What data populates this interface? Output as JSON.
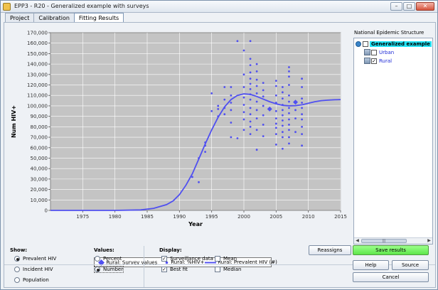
{
  "window": {
    "title": "EPP3 - R20 - Generalized example with surveys",
    "controls": {
      "minimize": "–",
      "maximize": "□",
      "close": "✕"
    }
  },
  "tabs": [
    {
      "label": "Project",
      "active": false
    },
    {
      "label": "Calibration",
      "active": false
    },
    {
      "label": "Fitting Results",
      "active": true
    }
  ],
  "chart_data": {
    "type": "scatter",
    "xlabel": "Year",
    "ylabel": "Num HIV+",
    "xlim": [
      1970,
      2015
    ],
    "ylim": [
      0,
      170000
    ],
    "x_ticks": [
      "1975",
      "1980",
      "1985",
      "1990",
      "1995",
      "2000",
      "2005",
      "2010",
      "2015"
    ],
    "y_ticks": [
      "0",
      "10,000",
      "20,000",
      "30,000",
      "40,000",
      "50,000",
      "60,000",
      "70,000",
      "80,000",
      "90,000",
      "100,000",
      "110,000",
      "120,000",
      "130,000",
      "140,000",
      "150,000",
      "160,000",
      "170,000"
    ],
    "grid": true,
    "legend_position": "bottom",
    "colors": {
      "series": "#5050f0",
      "plot_bg": "#c4c4c4",
      "grid": "#ffffff"
    },
    "series": [
      {
        "name": "Rural: Survey values",
        "marker": "diamond",
        "points": [
          [
            2004,
            97000
          ],
          [
            2008,
            103500
          ]
        ]
      },
      {
        "name": "Rural: %HIV+",
        "marker": "dot",
        "points": [
          [
            1992,
            32000
          ],
          [
            1993,
            27000
          ],
          [
            1993,
            50000
          ],
          [
            1994,
            56000
          ],
          [
            1994,
            62000
          ],
          [
            1994,
            65000
          ],
          [
            1995,
            95000
          ],
          [
            1995,
            112000
          ],
          [
            1996,
            90000
          ],
          [
            1996,
            97000
          ],
          [
            1996,
            100000
          ],
          [
            1997,
            92000
          ],
          [
            1997,
            98000
          ],
          [
            1997,
            106000
          ],
          [
            1997,
            118000
          ],
          [
            1998,
            70000
          ],
          [
            1998,
            84000
          ],
          [
            1998,
            96000
          ],
          [
            1998,
            103000
          ],
          [
            1998,
            110000
          ],
          [
            1998,
            118000
          ],
          [
            1999,
            69000
          ],
          [
            1999,
            162000
          ],
          [
            2000,
            77000
          ],
          [
            2000,
            87000
          ],
          [
            2000,
            94000
          ],
          [
            2000,
            101000
          ],
          [
            2000,
            108000
          ],
          [
            2000,
            118000
          ],
          [
            2000,
            130000
          ],
          [
            2000,
            153000
          ],
          [
            2001,
            73000
          ],
          [
            2001,
            80000
          ],
          [
            2001,
            85000
          ],
          [
            2001,
            92000
          ],
          [
            2001,
            98000
          ],
          [
            2001,
            106000
          ],
          [
            2001,
            111000
          ],
          [
            2001,
            116000
          ],
          [
            2001,
            121000
          ],
          [
            2001,
            126000
          ],
          [
            2001,
            132000
          ],
          [
            2001,
            139000
          ],
          [
            2001,
            145000
          ],
          [
            2001,
            162000
          ],
          [
            2002,
            58000
          ],
          [
            2002,
            77000
          ],
          [
            2002,
            88000
          ],
          [
            2002,
            96000
          ],
          [
            2002,
            104000
          ],
          [
            2002,
            112000
          ],
          [
            2002,
            119000
          ],
          [
            2002,
            125000
          ],
          [
            2002,
            133000
          ],
          [
            2002,
            140000
          ],
          [
            2003,
            71000
          ],
          [
            2003,
            82000
          ],
          [
            2003,
            91000
          ],
          [
            2003,
            100000
          ],
          [
            2003,
            109000
          ],
          [
            2003,
            115000
          ],
          [
            2003,
            122000
          ],
          [
            2005,
            63000
          ],
          [
            2005,
            73000
          ],
          [
            2005,
            79000
          ],
          [
            2005,
            83000
          ],
          [
            2005,
            88000
          ],
          [
            2005,
            95000
          ],
          [
            2005,
            103000
          ],
          [
            2005,
            110000
          ],
          [
            2005,
            119000
          ],
          [
            2005,
            124000
          ],
          [
            2006,
            59000
          ],
          [
            2006,
            70000
          ],
          [
            2006,
            75000
          ],
          [
            2006,
            81000
          ],
          [
            2006,
            86000
          ],
          [
            2006,
            91000
          ],
          [
            2006,
            96000
          ],
          [
            2006,
            101000
          ],
          [
            2006,
            107000
          ],
          [
            2006,
            113000
          ],
          [
            2006,
            118000
          ],
          [
            2007,
            64000
          ],
          [
            2007,
            70000
          ],
          [
            2007,
            77000
          ],
          [
            2007,
            82000
          ],
          [
            2007,
            87000
          ],
          [
            2007,
            93000
          ],
          [
            2007,
            98000
          ],
          [
            2007,
            104000
          ],
          [
            2007,
            110000
          ],
          [
            2007,
            120000
          ],
          [
            2007,
            128000
          ],
          [
            2007,
            133000
          ],
          [
            2007,
            137000
          ],
          [
            2008,
            75000
          ],
          [
            2008,
            88000
          ],
          [
            2008,
            96000
          ],
          [
            2009,
            62000
          ],
          [
            2009,
            73000
          ],
          [
            2009,
            80000
          ],
          [
            2009,
            87000
          ],
          [
            2009,
            92000
          ],
          [
            2009,
            98000
          ],
          [
            2009,
            103000
          ],
          [
            2009,
            107000
          ],
          [
            2009,
            118000
          ],
          [
            2009,
            126000
          ]
        ]
      },
      {
        "name": "Rural: Prevalent HIV (#)",
        "marker": "line",
        "points": [
          [
            1970,
            0
          ],
          [
            1975,
            0
          ],
          [
            1980,
            0
          ],
          [
            1984,
            500
          ],
          [
            1986,
            2000
          ],
          [
            1988,
            5500
          ],
          [
            1989,
            9000
          ],
          [
            1990,
            15000
          ],
          [
            1991,
            24000
          ],
          [
            1992,
            35000
          ],
          [
            1993,
            49000
          ],
          [
            1994,
            63500
          ],
          [
            1995,
            77000
          ],
          [
            1996,
            89000
          ],
          [
            1997,
            99000
          ],
          [
            1998,
            106000
          ],
          [
            1999,
            110000
          ],
          [
            2000,
            111500
          ],
          [
            2001,
            111000
          ],
          [
            2002,
            109000
          ],
          [
            2003,
            106500
          ],
          [
            2004,
            104000
          ],
          [
            2005,
            102000
          ],
          [
            2006,
            100500
          ],
          [
            2007,
            100000
          ],
          [
            2008,
            100200
          ],
          [
            2009,
            101000
          ],
          [
            2010,
            102500
          ],
          [
            2011,
            104000
          ],
          [
            2012,
            105000
          ],
          [
            2013,
            105500
          ],
          [
            2014,
            105800
          ],
          [
            2015,
            106000
          ]
        ]
      }
    ]
  },
  "tree": {
    "title": "National Epidemic Structure",
    "root": {
      "label": "Generalized example",
      "checked": false
    },
    "children": [
      {
        "label": "Urban",
        "checked": false
      },
      {
        "label": "Rural",
        "checked": true
      }
    ],
    "scroll_center_mark": "|||"
  },
  "show": {
    "label": "Show:",
    "options": [
      {
        "label": "Prevalent HIV",
        "selected": true
      },
      {
        "label": "Incident HIV",
        "selected": false
      },
      {
        "label": "Population",
        "selected": false
      }
    ]
  },
  "values": {
    "label": "Values:",
    "options": [
      {
        "label": "Percent",
        "selected": false
      },
      {
        "label": "Number",
        "selected": true
      }
    ]
  },
  "display": {
    "label": "Display:",
    "options": [
      {
        "label": "Surveillance data",
        "checked": true
      },
      {
        "label": "Mean",
        "checked": false
      },
      {
        "label": "Best fit",
        "checked": true
      },
      {
        "label": "Median",
        "checked": false
      }
    ]
  },
  "buttons": {
    "reassign": "Reassigns",
    "save": "Save results",
    "help": "Help",
    "source": "Source",
    "cancel": "Cancel"
  }
}
